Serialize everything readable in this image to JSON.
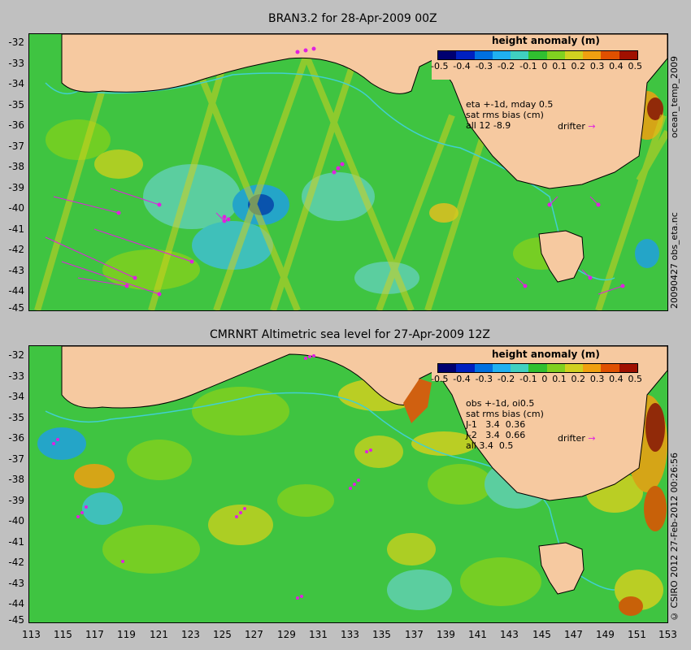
{
  "top": {
    "title": "BRAN3.2 for 28-Apr-2009 00Z",
    "legend_title": "height anomaly (m)",
    "notes": [
      "eta +-1d, mday 0.5",
      "sat rms bias (cm)",
      "all 12 -8.9"
    ],
    "drifter": "drifter",
    "side_labels": [
      "ocean_temp_2009",
      "20090427 obs_eta.nc"
    ]
  },
  "bottom": {
    "title": "CMRNRT Altimetric sea level  for 27-Apr-2009 12Z",
    "legend_title": "height anomaly (m)",
    "notes": [
      "obs +-1d, oi0.5",
      "sat rms bias (cm)",
      "J-1   3.4  0.36",
      "J-2   3.4  0.66",
      "all 3.4  0.5"
    ],
    "drifter": "drifter",
    "side_label": "© CSIRO 2012   27-Feb-2012 00:26:56"
  },
  "colorbar": {
    "ticks": [
      "-0.5",
      "-0.4",
      "-0.3",
      "-0.2",
      "-0.1",
      "0",
      "0.1",
      "0.2",
      "0.3",
      "0.4",
      "0.5"
    ],
    "colors": [
      "#000070",
      "#0020c0",
      "#0070e0",
      "#20b0f0",
      "#40d0c0",
      "#30c030",
      "#80d020",
      "#d0d020",
      "#f0a010",
      "#e05000",
      "#a01000"
    ]
  },
  "axes": {
    "lat_labels": [
      "-32",
      "-33",
      "-34",
      "-35",
      "-36",
      "-37",
      "-38",
      "-39",
      "-40",
      "-41",
      "-42",
      "-43",
      "-44",
      "-45"
    ],
    "lon_labels": [
      "113",
      "115",
      "117",
      "119",
      "121",
      "123",
      "125",
      "127",
      "129",
      "131",
      "133",
      "135",
      "137",
      "139",
      "141",
      "143",
      "145",
      "147",
      "149",
      "151",
      "153"
    ]
  },
  "colors": {
    "land": "#f6c9a0",
    "ocean_base": "#3fc441",
    "drifter": "#e020e0",
    "shelf": "#40d0d0"
  }
}
